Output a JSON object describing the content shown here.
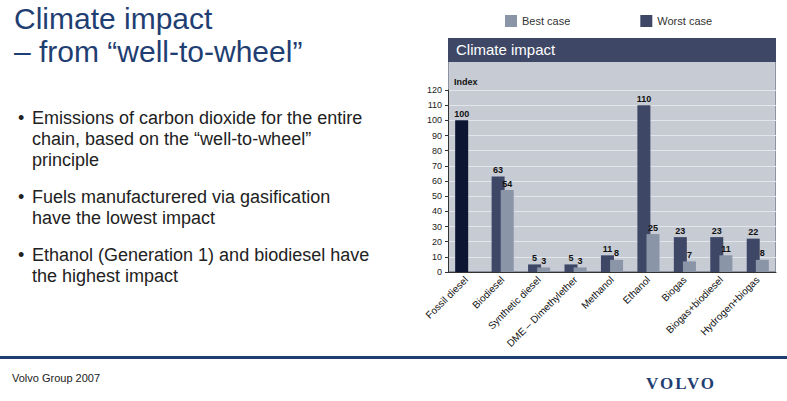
{
  "slide": {
    "title": [
      "Climate impact",
      "– from “well-to-wheel”"
    ],
    "bullets": [
      "Emissions of carbon dioxide for the entire chain, based on the “well-to-wheel” principle",
      "Fuels manufacturered via gasification have the lowest impact",
      "Ethanol (Generation 1) and biodiesel have the highest impact"
    ],
    "footer": "Volvo Group 2007",
    "logo": "VOLVO"
  },
  "chart_data": {
    "type": "bar",
    "title": "Climate impact",
    "y_label": "Index",
    "categories": [
      "Fossil diesel",
      "Biodiesel",
      "Synthetic diesel",
      "DME – Dimethylether",
      "Methanol",
      "Ethanol",
      "Biogas",
      "Biogas+biodiesel",
      "Hydrogen+biogas"
    ],
    "series": [
      {
        "name": "Best case",
        "color": "#8a95a8",
        "values": [
          null,
          54,
          3,
          3,
          8,
          25,
          7,
          11,
          8
        ]
      },
      {
        "name": "Worst case",
        "color": "#3e4866",
        "colors": [
          "#0c1633",
          "#3e4866",
          "#3e4866",
          "#3e4866",
          "#3e4866",
          "#3e4866",
          "#3e4866",
          "#3e4866",
          "#3e4866"
        ],
        "values": [
          100,
          63,
          5,
          5,
          11,
          110,
          23,
          23,
          22
        ]
      }
    ],
    "ylim": [
      0,
      120
    ],
    "yticks": [
      0,
      10,
      20,
      30,
      40,
      50,
      60,
      70,
      80,
      90,
      100,
      110,
      120
    ],
    "grid": true,
    "legend": "top",
    "data_labels": true
  }
}
